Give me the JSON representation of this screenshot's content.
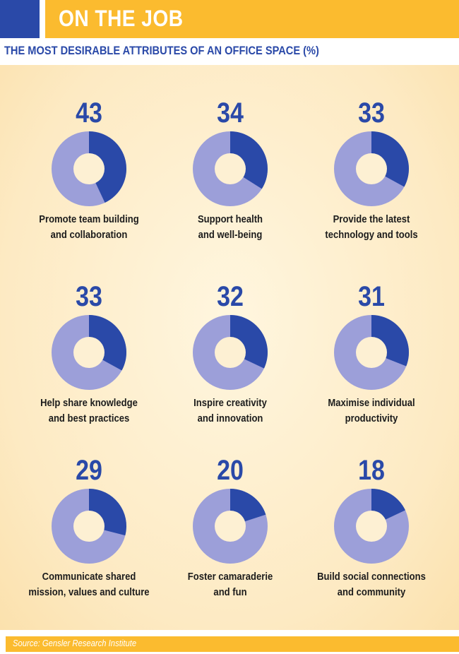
{
  "header": {
    "title": "ON THE JOB"
  },
  "subtitle": "THE MOST DESIRABLE ATTRIBUTES OF AN OFFICE SPACE (%)",
  "footer": {
    "source": "Source: Gensler Research Institute"
  },
  "colors": {
    "accent_blue": "#2a49a8",
    "slice_dark": "#2a49a8",
    "slice_light": "#9c9fd9",
    "hole": "#fdf0d3",
    "header_yellow": "#fbbb2f"
  },
  "chart_data": {
    "type": "pie",
    "title": "THE MOST DESIRABLE ATTRIBUTES OF AN OFFICE SPACE (%)",
    "unit": "%",
    "items": [
      {
        "value": 43,
        "value_text": "43",
        "label_lines": [
          "Promote team building",
          "and collaboration"
        ]
      },
      {
        "value": 34,
        "value_text": "34",
        "label_lines": [
          "Support health",
          "and well-being"
        ]
      },
      {
        "value": 33,
        "value_text": "33",
        "label_lines": [
          "Provide the latest",
          "technology and tools"
        ]
      },
      {
        "value": 33,
        "value_text": "33",
        "label_lines": [
          "Help share knowledge",
          "and best practices"
        ]
      },
      {
        "value": 32,
        "value_text": "32",
        "label_lines": [
          "Inspire creativity",
          "and innovation"
        ]
      },
      {
        "value": 31,
        "value_text": "31",
        "label_lines": [
          "Maximise individual",
          "productivity"
        ]
      },
      {
        "value": 29,
        "value_text": "29",
        "label_lines": [
          "Communicate shared",
          "mission, values and culture"
        ]
      },
      {
        "value": 20,
        "value_text": "20",
        "label_lines": [
          "Foster camaraderie",
          "and fun"
        ]
      },
      {
        "value": 18,
        "value_text": "18",
        "label_lines": [
          "Build social connections",
          "and community"
        ]
      }
    ]
  }
}
